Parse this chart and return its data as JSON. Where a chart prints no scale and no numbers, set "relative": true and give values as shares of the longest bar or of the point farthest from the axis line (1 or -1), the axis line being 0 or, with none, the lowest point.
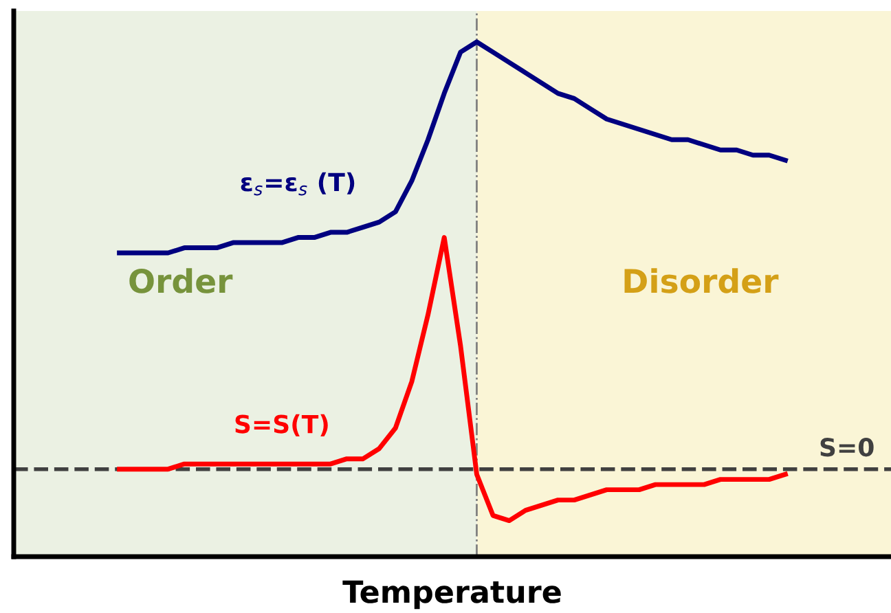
{
  "chart_data": {
    "type": "line",
    "relative": true,
    "xlabel": "Temperature",
    "annotations": [
      "Order",
      "Disorder"
    ],
    "legend": false,
    "marker": "none",
    "line_style": "solid",
    "categories": [
      null,
      null,
      null,
      null,
      null,
      null,
      null,
      null,
      null,
      null,
      null,
      null,
      null,
      null,
      null,
      null,
      null,
      null,
      null,
      null,
      null,
      null,
      null,
      null,
      null,
      null,
      null,
      null,
      null,
      null,
      null,
      null,
      null,
      null,
      null,
      null,
      null,
      null,
      null,
      null,
      null,
      null,
      null,
      null,
      null,
      null,
      null,
      null,
      null,
      null,
      null,
      null,
      null,
      null
    ],
    "series": [
      {
        "name": "ε$_{s}$=ε$_{s}$ (T)",
        "color": "#000080",
        "values": [
          null,
          null,
          null,
          null,
          null,
          null,
          0.59,
          0.59,
          0.59,
          0.59,
          0.6,
          0.6,
          0.6,
          0.61,
          0.61,
          0.61,
          0.61,
          0.62,
          0.62,
          0.63,
          0.63,
          0.64,
          0.65,
          0.67,
          0.73,
          0.81,
          0.9,
          0.98,
          1,
          0.98,
          0.96,
          0.94,
          0.92,
          0.9,
          0.89,
          0.87,
          0.85,
          0.84,
          0.83,
          0.82,
          0.81,
          0.81,
          0.8,
          0.79,
          0.79,
          0.78,
          0.78,
          0.77,
          null,
          null,
          null,
          null,
          null,
          null
        ]
      },
      {
        "name": "S=S(T)",
        "color": "#ff0000",
        "values": [
          null,
          null,
          null,
          null,
          null,
          null,
          0.17,
          0.17,
          0.17,
          0.17,
          0.18,
          0.18,
          0.18,
          0.18,
          0.18,
          0.18,
          0.18,
          0.18,
          0.18,
          0.18,
          0.19,
          0.19,
          0.21,
          0.25,
          0.34,
          0.47,
          0.62,
          0.41,
          0.16,
          0.08,
          0.07,
          0.09,
          0.1,
          0.11,
          0.11,
          0.12,
          0.13,
          0.13,
          0.13,
          0.14,
          0.14,
          0.14,
          0.14,
          0.15,
          0.15,
          0.15,
          0.15,
          0.16,
          null,
          null,
          null,
          null,
          null,
          null
        ]
      }
    ],
    "ref_lines": [
      {
        "axis": "y",
        "value": 0.17,
        "label": "S=0",
        "color": "#404040",
        "line_style": "dashed"
      }
    ]
  }
}
